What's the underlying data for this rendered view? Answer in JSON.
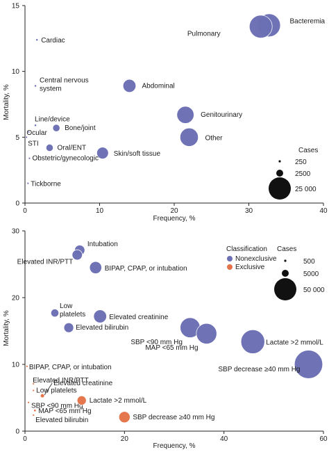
{
  "chart_data": [
    {
      "type": "scatter",
      "variant": "bubble",
      "xlabel": "Frequency, %",
      "ylabel": "Mortality, %",
      "xlim": [
        0,
        40
      ],
      "ylim": [
        0,
        15
      ],
      "xticks": [
        "0",
        "10",
        "20",
        "30",
        "40"
      ],
      "yticks": [
        "0",
        "5",
        "10",
        "15"
      ],
      "bubble_color": "#6b6fb3",
      "series": [
        {
          "points": [
            {
              "label": "Bacteremia",
              "x": 32.7,
              "y": 13.5,
              "cases": 25000
            },
            {
              "label": "Pulmonary",
              "x": 31.6,
              "y": 13.4,
              "cases": 25000
            },
            {
              "label": "Cardiac",
              "x": 1.6,
              "y": 12.4,
              "cases": 250
            },
            {
              "label": "Central nervous system",
              "x": 1.4,
              "y": 8.9,
              "cases": 250
            },
            {
              "label": "Abdominal",
              "x": 14.0,
              "y": 8.9,
              "cases": 8000
            },
            {
              "label": "Genitourinary",
              "x": 21.5,
              "y": 6.7,
              "cases": 14000
            },
            {
              "label": "Other",
              "x": 22.0,
              "y": 5.0,
              "cases": 16000
            },
            {
              "label": "Line/device",
              "x": 1.4,
              "y": 5.9,
              "cases": 250
            },
            {
              "label": "Bone/joint",
              "x": 4.2,
              "y": 5.7,
              "cases": 2500
            },
            {
              "label": "Ocular",
              "x": 0.5,
              "y": 5.4,
              "cases": 100
            },
            {
              "label": "STI",
              "x": 0.2,
              "y": 5.0,
              "cases": 100
            },
            {
              "label": "Oral/ENT",
              "x": 3.3,
              "y": 4.2,
              "cases": 2500
            },
            {
              "label": "Skin/soft tissue",
              "x": 10.4,
              "y": 3.8,
              "cases": 6500
            },
            {
              "label": "Obstetric/gynecologic",
              "x": 0.6,
              "y": 3.4,
              "cases": 150
            },
            {
              "label": "Tickborne",
              "x": 0.4,
              "y": 1.5,
              "cases": 100
            }
          ]
        }
      ],
      "legend": {
        "title": "Cases",
        "placement": "bottom-right",
        "sizes": [
          "250",
          "2500",
          "25 000"
        ]
      }
    },
    {
      "type": "scatter",
      "variant": "bubble",
      "xlabel": "Frequency, %",
      "ylabel": "Mortality, %",
      "xlim": [
        0,
        60
      ],
      "ylim": [
        0,
        30
      ],
      "xticks": [
        "0",
        "20",
        "40",
        "60"
      ],
      "yticks": [
        "0",
        "10",
        "20",
        "30"
      ],
      "series": [
        {
          "name": "Nonexclusive",
          "color": "#6b6fb3",
          "points": [
            {
              "label": "Intubation",
              "x": 11.0,
              "y": 27.1,
              "cases": 5000
            },
            {
              "label": "Elevated INR/PTT",
              "x": 10.5,
              "y": 26.4,
              "cases": 5000
            },
            {
              "label": "BIPAP, CPAP, or intubation",
              "x": 14.2,
              "y": 24.5,
              "cases": 7000
            },
            {
              "label": "Low platelets",
              "x": 6.0,
              "y": 17.7,
              "cases": 3000
            },
            {
              "label": "Elevated creatinine",
              "x": 15.1,
              "y": 17.2,
              "cases": 8000
            },
            {
              "label": "Elevated bilirubin",
              "x": 8.8,
              "y": 15.5,
              "cases": 4500
            },
            {
              "label": "SBP <90 mm Hg",
              "x": 33.2,
              "y": 15.5,
              "cases": 19000
            },
            {
              "label": "MAP <65 mm Hg",
              "x": 36.5,
              "y": 14.6,
              "cases": 20000
            },
            {
              "label": "Lactate >2 mmol/L",
              "x": 45.8,
              "y": 13.4,
              "cases": 27000
            },
            {
              "label": "SBP decrease ≥40 mm Hg",
              "x": 57.0,
              "y": 10.0,
              "cases": 38000
            }
          ]
        },
        {
          "name": "Exclusive",
          "color": "#e5734a",
          "points": [
            {
              "label": "BIPAP, CPAP, or intubation",
              "x": 0.4,
              "y": 9.7,
              "cases": 100
            },
            {
              "label": "Elevated INR/PTT",
              "x": 1.7,
              "y": 7.1,
              "cases": 200
            },
            {
              "label": "Low platelets",
              "x": 1.7,
              "y": 6.1,
              "cases": 200
            },
            {
              "label": "Elevated creatinine",
              "x": 3.5,
              "y": 5.3,
              "cases": 800
            },
            {
              "label": "SBP <90 mm Hg",
              "x": 0.7,
              "y": 4.3,
              "cases": 100
            },
            {
              "label": "MAP <65 mm Hg",
              "x": 2.0,
              "y": 3.1,
              "cases": 300
            },
            {
              "label": "Elevated bilirubin",
              "x": 1.7,
              "y": 2.4,
              "cases": 200
            },
            {
              "label": "Lactate >2 mmol/L",
              "x": 11.4,
              "y": 4.6,
              "cases": 4000
            },
            {
              "label": "SBP decrease ≥40 mm Hg",
              "x": 20.0,
              "y": 2.1,
              "cases": 6000
            }
          ]
        }
      ],
      "legend": {
        "title": "Classification",
        "placement": "top-right"
      },
      "size_legend": {
        "title": "Cases",
        "placement": "top-right",
        "sizes": [
          "500",
          "5000",
          "50 000"
        ]
      }
    }
  ]
}
